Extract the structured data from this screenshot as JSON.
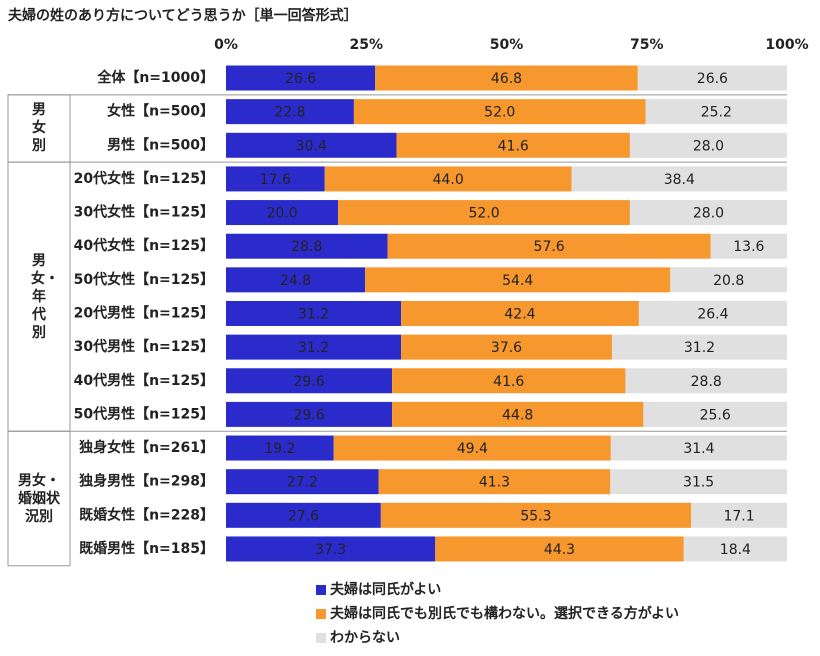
{
  "chart_data": {
    "type": "stacked-bar-horizontal",
    "title": "夫婦の姓のあり方についてどう思うか［単一回答形式］",
    "categories": [
      "全体【n=1000】",
      "女性【n=500】",
      "男性【n=500】",
      "20代女性【n=125】",
      "30代女性【n=125】",
      "40代女性【n=125】",
      "50代女性【n=125】",
      "20代男性【n=125】",
      "30代男性【n=125】",
      "40代男性【n=125】",
      "50代男性【n=125】",
      "独身女性【n=261】",
      "独身男性【n=298】",
      "既婚女性【n=228】",
      "既婚男性【n=185】"
    ],
    "groups": [
      {
        "label": "男女別",
        "size": 2
      },
      {
        "label": "男女・年代別",
        "size": 8
      },
      {
        "label": "男女・婚姻状況別",
        "size": 4
      }
    ],
    "series": [
      {
        "name": "夫婦は同氏がよい",
        "color": "#2b2bcc",
        "values": [
          26.6,
          22.8,
          30.4,
          17.6,
          20.0,
          28.8,
          24.8,
          31.2,
          31.2,
          29.6,
          29.6,
          19.2,
          27.2,
          27.6,
          37.3
        ],
        "value_labels": [
          "26.6",
          "22.8",
          "30.4",
          "17.6",
          "20.0",
          "28.8",
          "24.8",
          "31.2",
          "31.2",
          "29.6",
          "29.6",
          "19.2",
          "27.2",
          "27.6",
          "37.3"
        ]
      },
      {
        "name": "夫婦は同氏でも別氏でも構わない。選択できる方がよい",
        "color": "#f7982f",
        "values": [
          46.8,
          52.0,
          41.6,
          44.0,
          52.0,
          57.6,
          54.4,
          42.4,
          37.6,
          41.6,
          44.8,
          49.4,
          41.3,
          55.3,
          44.3
        ],
        "value_labels": [
          "46.8",
          "52.0",
          "41.6",
          "44.0",
          "52.0",
          "57.6",
          "54.4",
          "42.4",
          "37.6",
          "41.6",
          "44.8",
          "49.4",
          "41.3",
          "55.3",
          "44.3"
        ]
      },
      {
        "name": "わからない",
        "color": "#e0e0e0",
        "values": [
          26.6,
          25.2,
          28.0,
          38.4,
          28.0,
          13.6,
          20.8,
          26.4,
          31.2,
          28.8,
          25.6,
          31.4,
          31.5,
          17.1,
          18.4
        ],
        "value_labels": [
          "26.6",
          "25.2",
          "28.0",
          "38.4",
          "28.0",
          "13.6",
          "20.8",
          "26.4",
          "31.2",
          "28.8",
          "25.6",
          "31.4",
          "31.5",
          "17.1",
          "18.4"
        ]
      }
    ],
    "xlim": [
      0,
      100
    ],
    "xticks": [
      {
        "value": 0,
        "label": "0%"
      },
      {
        "value": 25,
        "label": "25%"
      },
      {
        "value": 50,
        "label": "50%"
      },
      {
        "value": 75,
        "label": "75%"
      },
      {
        "value": 100,
        "label": "100%"
      }
    ]
  }
}
